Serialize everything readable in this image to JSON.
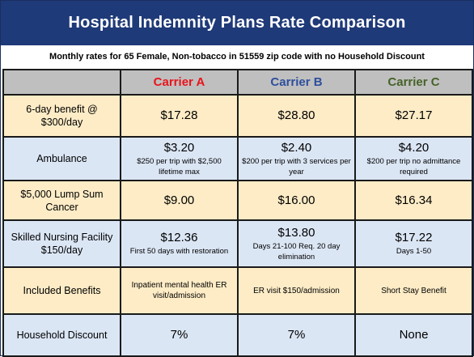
{
  "title": "Hospital Indemnity Plans Rate Comparison",
  "subtitle": "Monthly rates for 65 Female, Non-tobacco in 51559 zip code with no Household Discount",
  "colors": {
    "title_bg": "#1f3a78",
    "header_bg": "#bfbfbf",
    "cream_row": "#fdecc6",
    "blue_row": "#dbe6f5",
    "carrier_a": "#e8141b",
    "carrier_b": "#2f4f9c",
    "carrier_c": "#466328"
  },
  "headers": {
    "carrier_a": "Carrier A",
    "carrier_b": "Carrier B",
    "carrier_c": "Carrier C"
  },
  "rows": [
    {
      "label": "6-day benefit @ $300/day",
      "a": {
        "price": "$17.28",
        "note": ""
      },
      "b": {
        "price": "$28.80",
        "note": ""
      },
      "c": {
        "price": "$27.17",
        "note": ""
      }
    },
    {
      "label": "Ambulance",
      "a": {
        "price": "$3.20",
        "note": "$250 per trip with $2,500 lifetime max"
      },
      "b": {
        "price": "$2.40",
        "note": "$200 per trip with 3 services per year"
      },
      "c": {
        "price": "$4.20",
        "note": "$200 per trip no admittance required"
      }
    },
    {
      "label": "$5,000 Lump Sum Cancer",
      "a": {
        "price": "$9.00",
        "note": ""
      },
      "b": {
        "price": "$16.00",
        "note": ""
      },
      "c": {
        "price": "$16.34",
        "note": ""
      }
    },
    {
      "label": "Skilled Nursing Facility $150/day",
      "a": {
        "price": "$12.36",
        "note": "First 50 days with restoration"
      },
      "b": {
        "price": "$13.80",
        "note": "Days 21-100 Req. 20 day elimination"
      },
      "c": {
        "price": "$17.22",
        "note": "Days 1-50"
      }
    },
    {
      "label": "Included Benefits",
      "a": {
        "price": "",
        "note": "Inpatient mental health ER visit/admission"
      },
      "b": {
        "price": "",
        "note": "ER visit $150/admission"
      },
      "c": {
        "price": "",
        "note": "Short Stay Benefit"
      }
    },
    {
      "label": "Household Discount",
      "a": {
        "price": "7%",
        "note": ""
      },
      "b": {
        "price": "7%",
        "note": ""
      },
      "c": {
        "price": "None",
        "note": ""
      }
    }
  ]
}
